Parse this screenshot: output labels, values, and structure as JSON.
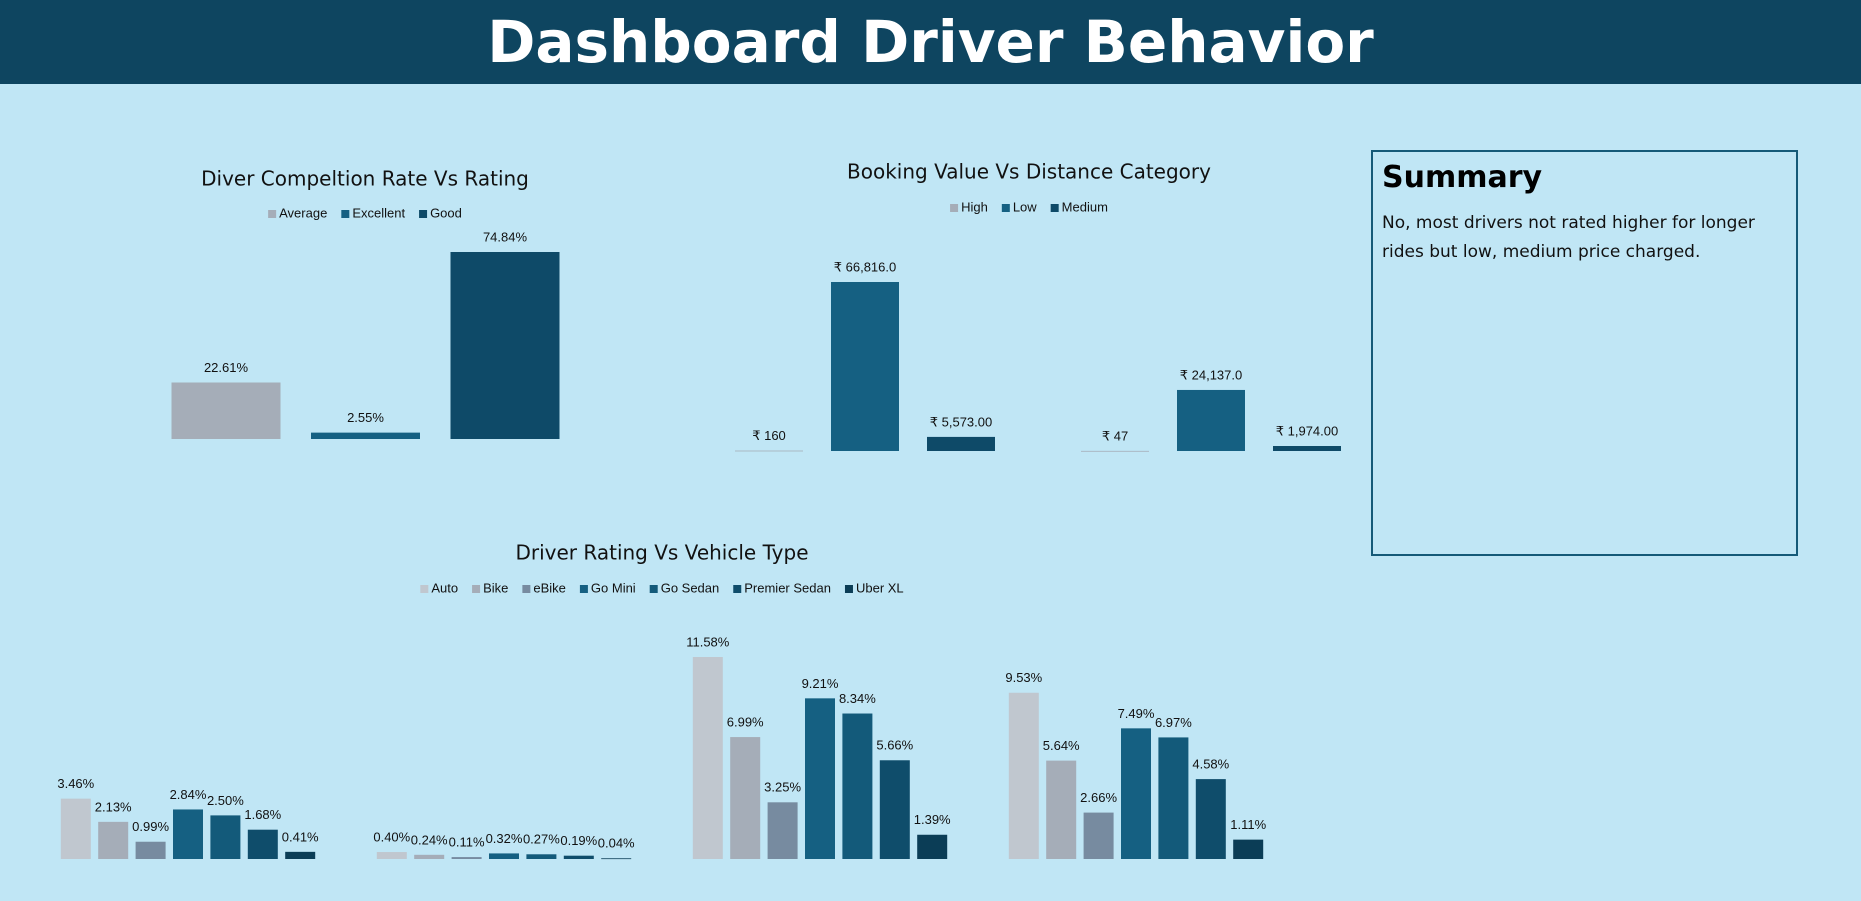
{
  "header": {
    "title": "Dashboard Driver Behavior"
  },
  "summary": {
    "title": "Summary",
    "text": "No, most drivers not rated higher for longer rides but low, medium price charged."
  },
  "chart_data": [
    {
      "type": "bar",
      "title": "Diver Compeltion Rate Vs Rating",
      "categories": [
        "Average",
        "Excellent",
        "Good"
      ],
      "values": [
        22.61,
        2.55,
        74.84
      ],
      "value_labels": [
        "22.61%",
        "2.55%",
        "74.84%"
      ],
      "colors": [
        "#a5adb8",
        "#156082",
        "#0e4a68"
      ]
    },
    {
      "type": "bar",
      "title": "Booking Value Vs Distance Category",
      "categories": [
        null,
        null
      ],
      "series": [
        {
          "name": "High",
          "color": "#a5adb8",
          "values": [
            160,
            47
          ],
          "value_labels": [
            "₹ 160",
            "₹ 47"
          ]
        },
        {
          "name": "Low",
          "color": "#156082",
          "values": [
            66816,
            24137
          ],
          "value_labels": [
            "₹ 66,816.0",
            "₹ 24,137.0"
          ]
        },
        {
          "name": "Medium",
          "color": "#0e4a68",
          "values": [
            5573,
            1974
          ],
          "value_labels": [
            "₹ 5,573.00",
            "₹ 1,974.00"
          ]
        }
      ]
    },
    {
      "type": "bar",
      "title": "Driver Rating Vs Vehicle Type",
      "categories": [
        null,
        null,
        null,
        null
      ],
      "series": [
        {
          "name": "Auto",
          "color": "#c0c7cf",
          "values": [
            3.46,
            0.4,
            11.58,
            9.53
          ],
          "value_labels": [
            "3.46%",
            "0.40%",
            "11.58%",
            "9.53%"
          ]
        },
        {
          "name": "Bike",
          "color": "#a5adb8",
          "values": [
            2.13,
            0.24,
            6.99,
            5.64
          ],
          "value_labels": [
            "2.13%",
            "0.24%",
            "6.99%",
            "5.64%"
          ]
        },
        {
          "name": "eBike",
          "color": "#778ba0",
          "values": [
            0.99,
            0.11,
            3.25,
            2.66
          ],
          "value_labels": [
            "0.99%",
            "0.11%",
            "3.25%",
            "2.66%"
          ]
        },
        {
          "name": "Go Mini",
          "color": "#156082",
          "values": [
            2.84,
            0.32,
            9.21,
            7.49
          ],
          "value_labels": [
            "2.84%",
            "0.32%",
            "9.21%",
            "7.49%"
          ]
        },
        {
          "name": "Go Sedan",
          "color": "#135a7a",
          "values": [
            2.5,
            0.27,
            8.34,
            6.97
          ],
          "value_labels": [
            "2.50%",
            "0.27%",
            "8.34%",
            "6.97%"
          ]
        },
        {
          "name": "Premier Sedan",
          "color": "#0f4d6b",
          "values": [
            1.68,
            0.19,
            5.66,
            4.58
          ],
          "value_labels": [
            "1.68%",
            "0.19%",
            "5.66%",
            "4.58%"
          ]
        },
        {
          "name": "Uber XL",
          "color": "#0b3d56",
          "values": [
            0.41,
            0.04,
            1.39,
            1.11
          ],
          "value_labels": [
            "0.41%",
            "0.04%",
            "1.39%",
            "1.11%"
          ]
        }
      ]
    }
  ]
}
